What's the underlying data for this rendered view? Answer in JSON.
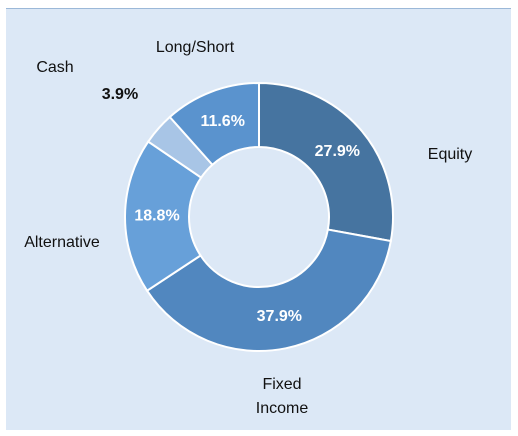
{
  "chart_data": {
    "type": "donut",
    "categories": [
      "Equity",
      "Fixed Income",
      "Alternative",
      "Cash",
      "Long/Short"
    ],
    "values": [
      27.9,
      37.9,
      18.8,
      3.9,
      11.6
    ],
    "value_labels": [
      "27.9%",
      "37.9%",
      "18.8%",
      "3.9%",
      "11.6%"
    ],
    "colors": [
      "#4674a0",
      "#5187bf",
      "#67a0d9",
      "#a8c5e6",
      "#5a93ce"
    ]
  }
}
